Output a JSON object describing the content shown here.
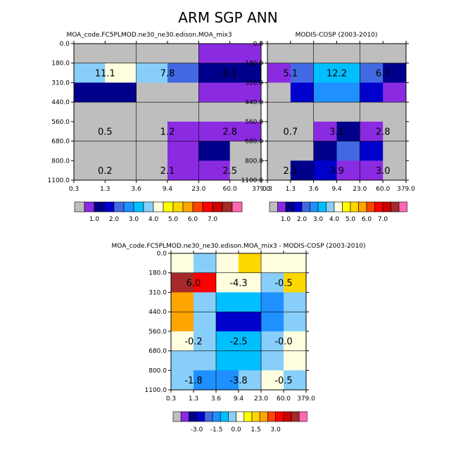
{
  "title": "ARM SGP ANN",
  "palette": {
    "sequential": [
      "#bebebe",
      "#8a2be2",
      "#00008b",
      "#0000cd",
      "#4169e1",
      "#1e90ff",
      "#00bfff",
      "#87cefa",
      "#ffffe0",
      "#ffff00",
      "#ffd700",
      "#ffa500",
      "#ff4500",
      "#ff0000",
      "#cc0000",
      "#a52a2a",
      "#ff69b4"
    ],
    "diverging": [
      "#bebebe",
      "#8a2be2",
      "#00008b",
      "#0000cd",
      "#4169e1",
      "#1e90ff",
      "#00bfff",
      "#87cefa",
      "#ffffe0",
      "#ffff00",
      "#ffd700",
      "#ffa500",
      "#ff4500",
      "#ff0000",
      "#cc0000",
      "#a52a2a",
      "#ff69b4"
    ]
  },
  "chart_data": [
    {
      "type": "heatmap",
      "id": "model",
      "title": "MOA_code.FC5PLMOD.ne30_ne30.edison.MOA_mix3",
      "xlabel": "",
      "ylabel": "",
      "x_ticks": [
        "0.3",
        "1.3",
        "3.6",
        "9.4",
        "23.0",
        "60.0",
        "379.0"
      ],
      "y_ticks": [
        "0.0",
        "180.0",
        "310.0",
        "440.0",
        "560.0",
        "680.0",
        "800.0",
        "1100.0"
      ],
      "cells": [
        [
          0,
          0,
          0,
          0,
          1,
          1
        ],
        [
          7,
          8,
          7,
          4,
          2,
          2
        ],
        [
          2,
          2,
          0,
          0,
          1,
          1
        ],
        [
          0,
          0,
          0,
          0,
          0,
          0
        ],
        [
          0,
          0,
          0,
          1,
          1,
          1
        ],
        [
          0,
          0,
          0,
          1,
          2,
          0
        ],
        [
          0,
          0,
          0,
          1,
          1,
          0
        ]
      ],
      "annotations": [
        {
          "row": 1,
          "col": 0.5,
          "text": "11.1"
        },
        {
          "row": 1,
          "col": 2.5,
          "text": "7.8"
        },
        {
          "row": 1,
          "col": 4.5,
          "text": "6.1"
        },
        {
          "row": 4,
          "col": 0.5,
          "text": "0.5"
        },
        {
          "row": 4,
          "col": 2.5,
          "text": "1.2"
        },
        {
          "row": 4,
          "col": 4.5,
          "text": "2.8"
        },
        {
          "row": 6,
          "col": 0.5,
          "text": "0.2"
        },
        {
          "row": 6,
          "col": 2.5,
          "text": "2.1"
        },
        {
          "row": 6,
          "col": 4.5,
          "text": "2.5"
        }
      ],
      "colorbar_labels": [
        "1.0",
        "2.0",
        "3.0",
        "4.0",
        "5.0",
        "6.0",
        "7.0"
      ],
      "colorbar_label_offset": 1.5
    },
    {
      "type": "heatmap",
      "id": "obs",
      "title": "MODIS-COSP (2003-2010)",
      "xlabel": "",
      "ylabel": "",
      "x_ticks": [
        "0.3",
        "1.3",
        "3.6",
        "9.4",
        "23.0",
        "60.0",
        "379.0"
      ],
      "y_ticks": [
        "0.0",
        "180.0",
        "310.0",
        "440.0",
        "560.0",
        "680.0",
        "800.0",
        "1100.0"
      ],
      "cells": [
        [
          0,
          0,
          0,
          0,
          0,
          0
        ],
        [
          1,
          4,
          6,
          6,
          4,
          2
        ],
        [
          0,
          3,
          5,
          5,
          3,
          1
        ],
        [
          0,
          0,
          0,
          0,
          0,
          0
        ],
        [
          0,
          0,
          1,
          2,
          1,
          0
        ],
        [
          0,
          0,
          2,
          4,
          3,
          0
        ],
        [
          0,
          2,
          3,
          1,
          1,
          0
        ]
      ],
      "annotations": [
        {
          "row": 1,
          "col": 0.5,
          "text": "5.1"
        },
        {
          "row": 1,
          "col": 2.5,
          "text": "12.2"
        },
        {
          "row": 1,
          "col": 4.5,
          "text": "6.7"
        },
        {
          "row": 4,
          "col": 0.5,
          "text": "0.7"
        },
        {
          "row": 4,
          "col": 2.5,
          "text": "3.1"
        },
        {
          "row": 4,
          "col": 4.5,
          "text": "2.8"
        },
        {
          "row": 6,
          "col": 0.5,
          "text": "2.1"
        },
        {
          "row": 6,
          "col": 2.5,
          "text": "3.9"
        },
        {
          "row": 6,
          "col": 4.5,
          "text": "3.0"
        }
      ],
      "colorbar_labels": [
        "1.0",
        "2.0",
        "3.0",
        "4.0",
        "5.0",
        "6.0",
        "7.0"
      ],
      "colorbar_label_offset": 1.5
    },
    {
      "type": "heatmap",
      "id": "diff",
      "title": "MOA_code.FC5PLMOD.ne30_ne30.edison.MOA_mix3 - MODIS-COSP (2003-2010)",
      "xlabel": "",
      "ylabel": "",
      "x_ticks": [
        "0.3",
        "1.3",
        "3.6",
        "9.4",
        "23.0",
        "60.0",
        "379.0"
      ],
      "y_ticks": [
        "0.0",
        "180.0",
        "310.0",
        "440.0",
        "560.0",
        "680.0",
        "800.0",
        "1100.0"
      ],
      "cells": [
        [
          8,
          7,
          8,
          10,
          8,
          8
        ],
        [
          15,
          13,
          8,
          8,
          7,
          10
        ],
        [
          11,
          7,
          6,
          6,
          5,
          7
        ],
        [
          11,
          7,
          3,
          3,
          5,
          7
        ],
        [
          8,
          7,
          6,
          6,
          7,
          8
        ],
        [
          7,
          7,
          6,
          6,
          7,
          8
        ],
        [
          7,
          5,
          5,
          7,
          8,
          7
        ]
      ],
      "annotations": [
        {
          "row": 1,
          "col": 0.5,
          "text": "6.0"
        },
        {
          "row": 1,
          "col": 2.5,
          "text": "-4.3"
        },
        {
          "row": 1,
          "col": 4.5,
          "text": "-0.5"
        },
        {
          "row": 4,
          "col": 0.5,
          "text": "-0.2"
        },
        {
          "row": 4,
          "col": 2.5,
          "text": "-2.5"
        },
        {
          "row": 4,
          "col": 4.5,
          "text": "-0.0"
        },
        {
          "row": 6,
          "col": 0.5,
          "text": "-1.8"
        },
        {
          "row": 6,
          "col": 2.5,
          "text": "-3.8"
        },
        {
          "row": 6,
          "col": 4.5,
          "text": "-0.5"
        }
      ],
      "colorbar_labels": [
        "-3.0",
        "-1.5",
        "0.0",
        "1.5",
        "3.0"
      ],
      "colorbar_label_offset": 2.5,
      "colorbar_label_step": 2
    }
  ]
}
